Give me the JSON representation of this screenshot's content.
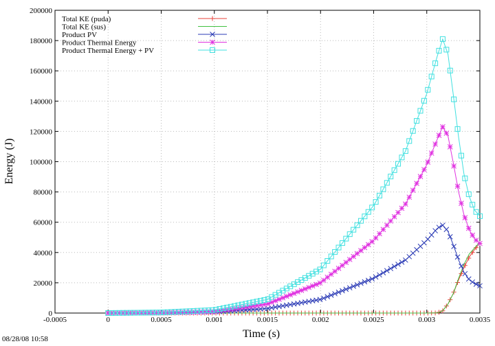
{
  "chart_data": {
    "type": "line",
    "title": "",
    "xlabel": "Time (s)",
    "ylabel": "Energy (J)",
    "xlim": [
      -0.0005,
      0.0035
    ],
    "ylim": [
      0,
      200000
    ],
    "x_ticks": [
      "-0.0005",
      "0",
      "0.0005",
      "0.001",
      "0.0015",
      "0.002",
      "0.0025",
      "0.003",
      "0.0035"
    ],
    "x_tick_values": [
      -0.0005,
      0,
      0.0005,
      0.001,
      0.0015,
      0.002,
      0.0025,
      0.003,
      0.0035
    ],
    "y_ticks": [
      "0",
      "20000",
      "40000",
      "60000",
      "80000",
      "100000",
      "120000",
      "140000",
      "160000",
      "180000",
      "200000"
    ],
    "y_tick_values": [
      0,
      20000,
      40000,
      60000,
      80000,
      100000,
      120000,
      140000,
      160000,
      180000,
      200000
    ],
    "grid": true,
    "legend_position": "top-left",
    "series": [
      {
        "name": "Total KE (puda)",
        "color": "#e8403a",
        "marker": "plus",
        "x": [
          0,
          0.0005,
          0.001,
          0.0015,
          0.002,
          0.0025,
          0.003,
          0.0031,
          0.00315,
          0.0032,
          0.00325,
          0.0033,
          0.00335,
          0.0034,
          0.00345,
          0.0035
        ],
        "y": [
          0,
          0,
          0,
          0,
          0,
          0,
          0,
          100,
          1500,
          6000,
          13000,
          22000,
          30000,
          37000,
          42000,
          46000
        ]
      },
      {
        "name": "Total KE (sus)",
        "color": "#40c040",
        "marker": "none",
        "x": [
          0,
          0.0005,
          0.001,
          0.0015,
          0.002,
          0.0025,
          0.003,
          0.0031,
          0.00315,
          0.0032,
          0.00325,
          0.0033,
          0.00335,
          0.0034,
          0.00345,
          0.0035
        ],
        "y": [
          0,
          0,
          0,
          0,
          0,
          0,
          0,
          100,
          1500,
          6000,
          13000,
          23000,
          32000,
          39000,
          43000,
          47000
        ]
      },
      {
        "name": "Product PV",
        "color": "#2a3ab5",
        "marker": "cross",
        "x": [
          0,
          0.0005,
          0.001,
          0.0015,
          0.002,
          0.0025,
          0.0028,
          0.003,
          0.0031,
          0.00315,
          0.0032,
          0.00325,
          0.0033,
          0.00335,
          0.0034,
          0.00345,
          0.0035
        ],
        "y": [
          0,
          200,
          700,
          3000,
          9000,
          23000,
          35000,
          48000,
          56000,
          58000,
          54000,
          45000,
          35000,
          27000,
          22000,
          19500,
          18000
        ]
      },
      {
        "name": "Product Thermal Energy",
        "color": "#e030e0",
        "marker": "star",
        "x": [
          0,
          0.0005,
          0.001,
          0.0015,
          0.002,
          0.0025,
          0.0028,
          0.003,
          0.0031,
          0.00315,
          0.0032,
          0.00325,
          0.0033,
          0.00335,
          0.0034,
          0.00345,
          0.0035
        ],
        "y": [
          0,
          200,
          1000,
          6000,
          20000,
          48000,
          72000,
          98000,
          115000,
          123000,
          117000,
          99000,
          80000,
          65000,
          55000,
          49000,
          46000
        ]
      },
      {
        "name": "Product Thermal Energy + PV",
        "color": "#40e0e0",
        "marker": "square",
        "x": [
          0,
          0.0005,
          0.001,
          0.0015,
          0.002,
          0.0025,
          0.0028,
          0.003,
          0.0031,
          0.00315,
          0.0032,
          0.00325,
          0.0033,
          0.00335,
          0.0034,
          0.00345,
          0.0035
        ],
        "y": [
          0,
          400,
          2000,
          9000,
          29000,
          71000,
          107000,
          145000,
          170000,
          181000,
          171000,
          144000,
          116000,
          92000,
          77000,
          68000,
          64000
        ]
      }
    ]
  },
  "timestamp": "08/28/08 10:58"
}
